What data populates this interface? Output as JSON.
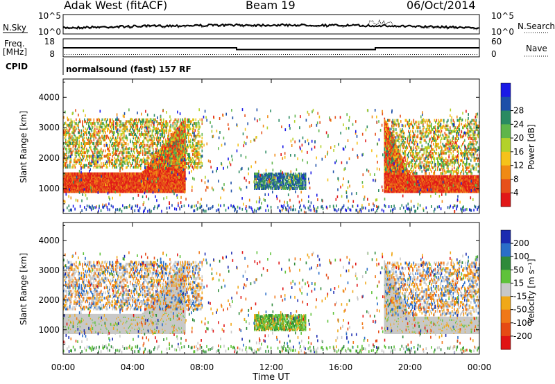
{
  "header": {
    "station": "Adak West (fitACF)",
    "beam": "Beam 19",
    "date": "06/Oct/2014"
  },
  "noise_panel": {
    "left_label": "N.Sky",
    "right_label": "N.Search",
    "left_ticks": [
      "10^5",
      "10^0"
    ],
    "right_ticks": [
      "10^5",
      "10^0"
    ]
  },
  "freq_panel": {
    "left_label_top": "Freq.",
    "left_label_unit": "[MHz]",
    "right_label": "Nave",
    "left_ticks": [
      "18",
      "8"
    ],
    "right_ticks": [
      "60",
      "0"
    ],
    "freq_steps_hours": [
      [
        0,
        10,
        13.0
      ],
      [
        10,
        18,
        11.6
      ],
      [
        18,
        24,
        13.0
      ]
    ],
    "nave_level": 4
  },
  "cpid": {
    "label": "CPID",
    "mode": "normalsound (fast) 157 RF"
  },
  "chart_data": [
    {
      "type": "heatmap",
      "title": "",
      "ylabel": "Slant Range [km]",
      "yticks": [
        "1000",
        "2000",
        "3000",
        "4000"
      ],
      "ylim": [
        180,
        4600
      ],
      "xlim": [
        0,
        24
      ],
      "colorbar": {
        "label": "Power [dB]",
        "ticks": [
          "4",
          "8",
          "12",
          "16",
          "20",
          "24",
          "28"
        ],
        "colors": [
          "#1a1ae6",
          "#1d4fa8",
          "#2a8a62",
          "#5fb54a",
          "#b3d12a",
          "#f5c21a",
          "#f08a14",
          "#e6501a",
          "#e11818"
        ]
      }
    },
    {
      "type": "heatmap",
      "title": "",
      "ylabel": "Slant Range [km]",
      "yticks": [
        "1000",
        "2000",
        "3000",
        "4000"
      ],
      "ylim": [
        180,
        4600
      ],
      "xlim": [
        0,
        24
      ],
      "xlabel": "Time UT",
      "xticks": [
        "00:00",
        "04:00",
        "08:00",
        "12:00",
        "16:00",
        "20:00",
        "00:00"
      ],
      "colorbar": {
        "label": "Velocity [m s⁻¹]",
        "ticks": [
          "200",
          "100",
          "50",
          "15",
          "-15",
          "-50",
          "-100",
          "-200"
        ],
        "colors": [
          "#1a2ab0",
          "#2a6ec8",
          "#2e8a3a",
          "#5fc23a",
          "#c8c8c8",
          "#f0a818",
          "#f07818",
          "#e64a14",
          "#e01414"
        ]
      }
    }
  ]
}
